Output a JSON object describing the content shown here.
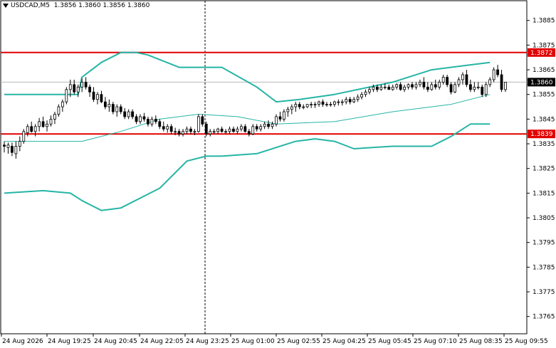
{
  "header": {
    "symbol": "USDCAD,M5",
    "open": "1.3856",
    "high": "1.3860",
    "low": "1.3856",
    "close": "1.3860"
  },
  "chart_data": {
    "type": "candlestick",
    "symbol": "USDCAD",
    "timeframe": "M5",
    "ylim": [
      1.3758,
      1.3893
    ],
    "y_ticks": [
      "1.3885",
      "1.3875",
      "1.3865",
      "1.3855",
      "1.3845",
      "1.3835",
      "1.3825",
      "1.3815",
      "1.3805",
      "1.3795",
      "1.3785",
      "1.3775",
      "1.3765"
    ],
    "x_ticks": [
      "24 Aug 2026",
      "24 Aug 19:25",
      "24 Aug 20:45",
      "24 Aug 22:05",
      "24 Aug 23:25",
      "25 Aug 01:00",
      "25 Aug 02:55",
      "25 Aug 04:25",
      "25 Aug 05:45",
      "25 Aug 07:10",
      "25 Aug 08:35",
      "25 Aug 09:55"
    ],
    "levels": [
      {
        "value": 1.3872,
        "label": "1.3872",
        "color": "#e00000"
      },
      {
        "value": 1.3839,
        "label": "1.3839",
        "color": "#e00000"
      }
    ],
    "current_price": {
      "value": 1.386,
      "label": "1.3860"
    },
    "candles": [
      [
        1.38345,
        1.3836,
        1.38315,
        1.3834
      ],
      [
        1.38335,
        1.38355,
        1.3831,
        1.38345
      ],
      [
        1.3834,
        1.38355,
        1.383,
        1.38315
      ],
      [
        1.3831,
        1.3836,
        1.3829,
        1.3834
      ],
      [
        1.3834,
        1.3838,
        1.3832,
        1.3836
      ],
      [
        1.3836,
        1.3841,
        1.3835,
        1.384
      ],
      [
        1.38395,
        1.3843,
        1.3838,
        1.3842
      ],
      [
        1.3842,
        1.3844,
        1.38395,
        1.384
      ],
      [
        1.384,
        1.3843,
        1.3838,
        1.3842
      ],
      [
        1.3842,
        1.38455,
        1.384,
        1.3844
      ],
      [
        1.3844,
        1.3846,
        1.38415,
        1.3842
      ],
      [
        1.3842,
        1.38445,
        1.384,
        1.3843
      ],
      [
        1.3843,
        1.38465,
        1.3842,
        1.3845
      ],
      [
        1.3845,
        1.3848,
        1.3843,
        1.3847
      ],
      [
        1.3847,
        1.3851,
        1.3846,
        1.385
      ],
      [
        1.385,
        1.3853,
        1.3848,
        1.3852
      ],
      [
        1.3852,
        1.3858,
        1.3851,
        1.3857
      ],
      [
        1.3857,
        1.3861,
        1.3854,
        1.3859
      ],
      [
        1.3859,
        1.3861,
        1.3855,
        1.3856
      ],
      [
        1.3856,
        1.3859,
        1.3854,
        1.3858
      ],
      [
        1.3858,
        1.38615,
        1.3856,
        1.386
      ],
      [
        1.386,
        1.3862,
        1.3857,
        1.3858
      ],
      [
        1.3858,
        1.3859,
        1.3854,
        1.3856
      ],
      [
        1.3856,
        1.3858,
        1.3852,
        1.3853
      ],
      [
        1.3853,
        1.3856,
        1.3851,
        1.3855
      ],
      [
        1.3855,
        1.38565,
        1.38515,
        1.3852
      ],
      [
        1.3852,
        1.3854,
        1.3849,
        1.385
      ],
      [
        1.385,
        1.3853,
        1.3848,
        1.3851
      ],
      [
        1.3851,
        1.3852,
        1.3847,
        1.3848
      ],
      [
        1.3848,
        1.3851,
        1.3846,
        1.385
      ],
      [
        1.385,
        1.3851,
        1.3847,
        1.3848
      ],
      [
        1.3848,
        1.38495,
        1.3845,
        1.3846
      ],
      [
        1.3846,
        1.3849,
        1.3845,
        1.3848
      ],
      [
        1.3848,
        1.3849,
        1.3845,
        1.3846
      ],
      [
        1.3846,
        1.3847,
        1.3843,
        1.3844
      ],
      [
        1.3844,
        1.3847,
        1.3843,
        1.3846
      ],
      [
        1.3846,
        1.38475,
        1.3844,
        1.3845
      ],
      [
        1.3845,
        1.3846,
        1.3842,
        1.3843
      ],
      [
        1.3843,
        1.3846,
        1.3842,
        1.3845
      ],
      [
        1.3845,
        1.38465,
        1.3843,
        1.3844
      ],
      [
        1.3844,
        1.3845,
        1.3841,
        1.3842
      ],
      [
        1.3842,
        1.3844,
        1.384,
        1.3841
      ],
      [
        1.3841,
        1.3843,
        1.38395,
        1.3842
      ],
      [
        1.3842,
        1.3843,
        1.3839,
        1.384
      ],
      [
        1.384,
        1.38415,
        1.38385,
        1.384
      ],
      [
        1.384,
        1.3841,
        1.3838,
        1.3839
      ],
      [
        1.3839,
        1.3841,
        1.3838,
        1.384
      ],
      [
        1.384,
        1.3842,
        1.3839,
        1.3841
      ],
      [
        1.3841,
        1.3842,
        1.3839,
        1.384
      ],
      [
        1.384,
        1.3841,
        1.38385,
        1.384
      ],
      [
        1.384,
        1.3847,
        1.38395,
        1.3846
      ],
      [
        1.3846,
        1.3847,
        1.3842,
        1.3843
      ],
      [
        1.3843,
        1.3844,
        1.3838,
        1.3839
      ],
      [
        1.3839,
        1.3841,
        1.3838,
        1.384
      ],
      [
        1.384,
        1.3841,
        1.3839,
        1.384
      ],
      [
        1.384,
        1.38415,
        1.3839,
        1.3841
      ],
      [
        1.3841,
        1.3842,
        1.38395,
        1.384
      ],
      [
        1.384,
        1.3841,
        1.3839,
        1.384
      ],
      [
        1.384,
        1.3842,
        1.3839,
        1.3841
      ],
      [
        1.3841,
        1.3842,
        1.38395,
        1.384
      ],
      [
        1.384,
        1.3842,
        1.3839,
        1.3841
      ],
      [
        1.3841,
        1.3843,
        1.384,
        1.3842
      ],
      [
        1.3842,
        1.3843,
        1.38395,
        1.384
      ],
      [
        1.384,
        1.3841,
        1.3838,
        1.3839
      ],
      [
        1.3839,
        1.3843,
        1.38385,
        1.3842
      ],
      [
        1.3842,
        1.3843,
        1.384,
        1.3841
      ],
      [
        1.3841,
        1.3843,
        1.384,
        1.3842
      ],
      [
        1.3842,
        1.3844,
        1.3841,
        1.3843
      ],
      [
        1.3843,
        1.38445,
        1.3841,
        1.3842
      ],
      [
        1.3842,
        1.3844,
        1.3841,
        1.3843
      ],
      [
        1.3843,
        1.3847,
        1.3842,
        1.3846
      ],
      [
        1.3846,
        1.3848,
        1.3844,
        1.3845
      ],
      [
        1.3845,
        1.3849,
        1.3844,
        1.3848
      ],
      [
        1.3848,
        1.385,
        1.3846,
        1.3849
      ],
      [
        1.3849,
        1.3851,
        1.3847,
        1.385
      ],
      [
        1.385,
        1.3852,
        1.3848,
        1.3851
      ],
      [
        1.3851,
        1.3852,
        1.3849,
        1.385
      ],
      [
        1.385,
        1.3851,
        1.3849,
        1.385
      ],
      [
        1.385,
        1.3851,
        1.38495,
        1.3851
      ],
      [
        1.3851,
        1.3852,
        1.38495,
        1.3851
      ],
      [
        1.3851,
        1.3852,
        1.38495,
        1.3851
      ],
      [
        1.3851,
        1.38525,
        1.385,
        1.3852
      ],
      [
        1.3852,
        1.3853,
        1.385,
        1.3851
      ],
      [
        1.3851,
        1.3852,
        1.385,
        1.3851
      ],
      [
        1.3851,
        1.3852,
        1.385,
        1.3851
      ],
      [
        1.3851,
        1.38525,
        1.385,
        1.3852
      ],
      [
        1.3852,
        1.3853,
        1.38505,
        1.3852
      ],
      [
        1.3852,
        1.3853,
        1.38505,
        1.3852
      ],
      [
        1.3852,
        1.3854,
        1.3851,
        1.3853
      ],
      [
        1.3853,
        1.3854,
        1.3851,
        1.3852
      ],
      [
        1.3852,
        1.3854,
        1.38515,
        1.3853
      ],
      [
        1.3853,
        1.3855,
        1.3852,
        1.3854
      ],
      [
        1.3854,
        1.3856,
        1.3853,
        1.3855
      ],
      [
        1.3855,
        1.3857,
        1.3854,
        1.3856
      ],
      [
        1.3856,
        1.3858,
        1.3855,
        1.3857
      ],
      [
        1.3857,
        1.3859,
        1.3856,
        1.3858
      ],
      [
        1.3858,
        1.3859,
        1.3856,
        1.3857
      ],
      [
        1.3857,
        1.3859,
        1.38565,
        1.3858
      ],
      [
        1.3858,
        1.38595,
        1.3857,
        1.3858
      ],
      [
        1.3858,
        1.3859,
        1.3857,
        1.3857
      ],
      [
        1.3857,
        1.3859,
        1.38565,
        1.3858
      ],
      [
        1.3858,
        1.38595,
        1.3857,
        1.3859
      ],
      [
        1.3859,
        1.386,
        1.38565,
        1.3857
      ],
      [
        1.3857,
        1.3859,
        1.3856,
        1.3858
      ],
      [
        1.3858,
        1.38595,
        1.3857,
        1.3859
      ],
      [
        1.3859,
        1.386,
        1.3857,
        1.3858
      ],
      [
        1.3858,
        1.386,
        1.3857,
        1.3859
      ],
      [
        1.3859,
        1.3861,
        1.3858,
        1.386
      ],
      [
        1.386,
        1.3862,
        1.3857,
        1.3858
      ],
      [
        1.3858,
        1.386,
        1.3856,
        1.3857
      ],
      [
        1.3857,
        1.386,
        1.38565,
        1.3859
      ],
      [
        1.3859,
        1.3861,
        1.3857,
        1.3858
      ],
      [
        1.3858,
        1.3861,
        1.3857,
        1.386
      ],
      [
        1.386,
        1.3863,
        1.3859,
        1.3862
      ],
      [
        1.3862,
        1.3863,
        1.3858,
        1.3859
      ],
      [
        1.3859,
        1.386,
        1.3855,
        1.3856
      ],
      [
        1.3856,
        1.386,
        1.38555,
        1.3859
      ],
      [
        1.3859,
        1.3862,
        1.3858,
        1.3861
      ],
      [
        1.3861,
        1.3864,
        1.3859,
        1.3863
      ],
      [
        1.3863,
        1.3865,
        1.3858,
        1.3859
      ],
      [
        1.3859,
        1.3861,
        1.3856,
        1.3857
      ],
      [
        1.3857,
        1.386,
        1.3856,
        1.3858
      ],
      [
        1.3858,
        1.386,
        1.3857,
        1.3858
      ],
      [
        1.3858,
        1.3859,
        1.3854,
        1.3855
      ],
      [
        1.3855,
        1.386,
        1.3854,
        1.3859
      ],
      [
        1.3859,
        1.3862,
        1.3858,
        1.3861
      ],
      [
        1.3861,
        1.3866,
        1.386,
        1.3865
      ],
      [
        1.3865,
        1.3867,
        1.3862,
        1.3863
      ],
      [
        1.3863,
        1.3865,
        1.3856,
        1.3857
      ],
      [
        1.3857,
        1.386,
        1.3856,
        1.386
      ]
    ],
    "series": [
      {
        "name": "",
        "type": "line",
        "color": "#26b5a6",
        "width": 2,
        "values": [
          [
            0,
            1.3855
          ],
          [
            15,
            1.3855
          ],
          [
            19,
            1.3855
          ],
          [
            20,
            1.3862
          ],
          [
            25,
            1.3868
          ],
          [
            30,
            1.3872
          ],
          [
            34,
            1.3872
          ],
          [
            37,
            1.3871
          ],
          [
            45,
            1.3866
          ],
          [
            56,
            1.3866
          ],
          [
            65,
            1.3858
          ],
          [
            70,
            1.3852
          ],
          [
            76,
            1.3853
          ],
          [
            85,
            1.3855
          ],
          [
            100,
            1.386
          ],
          [
            110,
            1.3865
          ],
          [
            120,
            1.3867
          ],
          [
            125,
            1.3868
          ]
        ]
      },
      {
        "name": "",
        "type": "line",
        "color": "#26b5a6",
        "width": 1,
        "values": [
          [
            0,
            1.3836
          ],
          [
            20,
            1.3836
          ],
          [
            30,
            1.384
          ],
          [
            40,
            1.3845
          ],
          [
            50,
            1.3847
          ],
          [
            60,
            1.3846
          ],
          [
            70,
            1.3843
          ],
          [
            85,
            1.3844
          ],
          [
            100,
            1.3848
          ],
          [
            115,
            1.3851
          ],
          [
            125,
            1.3855
          ]
        ]
      },
      {
        "name": "",
        "type": "line",
        "color": "#26b5a6",
        "width": 2,
        "values": [
          [
            0,
            1.3815
          ],
          [
            10,
            1.3816
          ],
          [
            17,
            1.3815
          ],
          [
            20,
            1.3812
          ],
          [
            25,
            1.3808
          ],
          [
            30,
            1.3809
          ],
          [
            40,
            1.3817
          ],
          [
            47,
            1.3828
          ],
          [
            52,
            1.383
          ],
          [
            56,
            1.383
          ],
          [
            65,
            1.3831
          ],
          [
            75,
            1.3836
          ],
          [
            80,
            1.3837
          ],
          [
            85,
            1.3836
          ],
          [
            90,
            1.3833
          ],
          [
            100,
            1.3834
          ],
          [
            110,
            1.3834
          ],
          [
            115,
            1.3838
          ],
          [
            120,
            1.3843
          ],
          [
            125,
            1.3843
          ]
        ]
      }
    ]
  }
}
